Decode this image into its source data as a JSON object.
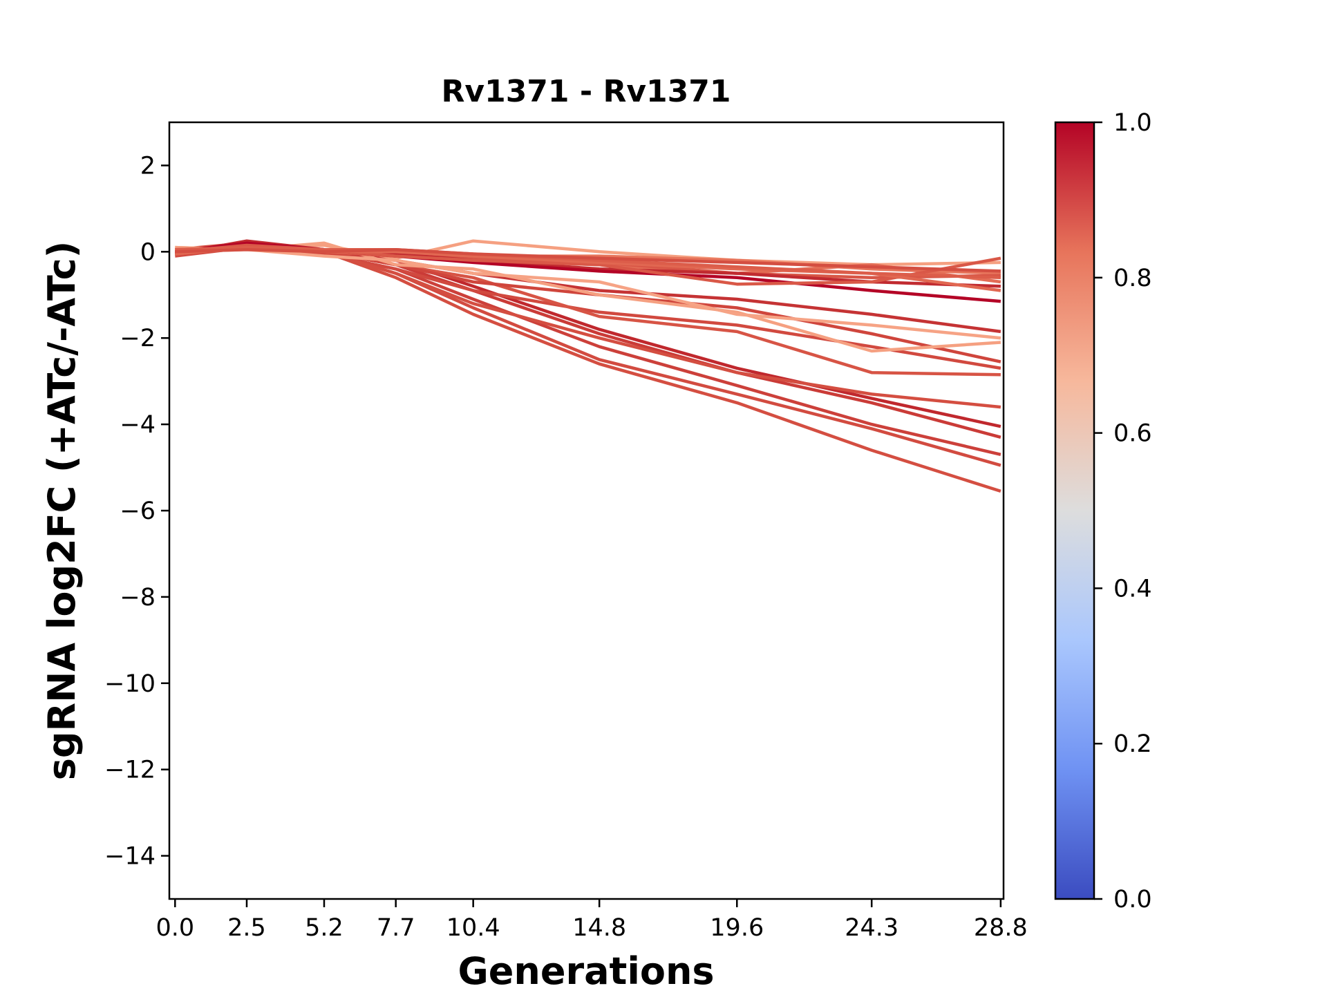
{
  "chart_data": {
    "type": "line",
    "title": "Rv1371 - Rv1371",
    "xlabel": "Generations",
    "ylabel": "sgRNA log2FC (+ATc/-ATc)",
    "x": [
      0.0,
      2.5,
      5.2,
      7.7,
      10.4,
      14.8,
      19.6,
      24.3,
      28.8
    ],
    "x_tick_labels": [
      "0.0",
      "2.5",
      "5.2",
      "7.7",
      "10.4",
      "14.8",
      "19.6",
      "24.3",
      "28.8"
    ],
    "y_ticks": [
      2,
      0,
      -2,
      -4,
      -6,
      -8,
      -10,
      -12,
      -14
    ],
    "y_tick_labels": [
      "2",
      "0",
      "−2",
      "−4",
      "−6",
      "−8",
      "−10",
      "−12",
      "−14"
    ],
    "xlim": [
      -0.2,
      28.9
    ],
    "ylim": [
      -15,
      3
    ],
    "grid": false,
    "colormap": "coolwarm",
    "colorbar": {
      "range": [
        0.0,
        1.0
      ],
      "ticks": [
        0.0,
        0.2,
        0.4,
        0.6,
        0.8,
        1.0
      ],
      "tick_labels": [
        "0.0",
        "0.2",
        "0.4",
        "0.6",
        "0.8",
        "1.0"
      ],
      "stops": [
        "#3b4cc0",
        "#6f92f3",
        "#aac7fd",
        "#dddddd",
        "#f7b89c",
        "#e7745b",
        "#b40426"
      ]
    },
    "series": [
      {
        "color": "#c0282d",
        "values": [
          0.0,
          0.1,
          0.0,
          -0.2,
          -0.8,
          -1.8,
          -2.7,
          -3.4,
          -4.05
        ]
      },
      {
        "color": "#ca3b37",
        "values": [
          -0.05,
          0.2,
          0.0,
          -0.3,
          -0.9,
          -1.9,
          -2.8,
          -3.5,
          -4.3
        ]
      },
      {
        "color": "#cc403a",
        "values": [
          0.0,
          0.15,
          -0.05,
          -0.4,
          -1.1,
          -2.2,
          -3.1,
          -4.0,
          -4.7
        ]
      },
      {
        "color": "#d24b40",
        "values": [
          -0.1,
          0.1,
          0.0,
          -0.5,
          -1.3,
          -2.5,
          -3.3,
          -4.1,
          -4.95
        ]
      },
      {
        "color": "#d44e41",
        "values": [
          0.05,
          0.2,
          0.0,
          -0.6,
          -1.45,
          -2.6,
          -3.5,
          -4.6,
          -5.55
        ]
      },
      {
        "color": "#d1493f",
        "values": [
          0.0,
          0.1,
          -0.05,
          -0.4,
          -0.9,
          -1.4,
          -1.7,
          -2.2,
          -2.7
        ]
      },
      {
        "color": "#d44e41",
        "values": [
          0.0,
          0.15,
          0.0,
          -0.5,
          -1.2,
          -2.0,
          -2.8,
          -3.3,
          -3.6
        ]
      },
      {
        "color": "#d75445",
        "values": [
          -0.05,
          0.1,
          0.0,
          -0.3,
          -0.6,
          -1.5,
          -1.85,
          -2.8,
          -2.85
        ]
      },
      {
        "color": "#cf453c",
        "values": [
          0.0,
          0.1,
          0.0,
          -0.3,
          -0.7,
          -1.0,
          -1.3,
          -1.9,
          -2.55
        ]
      },
      {
        "color": "#c53334",
        "values": [
          0.0,
          0.2,
          0.05,
          -0.2,
          -0.5,
          -0.9,
          -1.1,
          -1.45,
          -1.85
        ]
      },
      {
        "color": "#f5a081",
        "values": [
          0.1,
          0.05,
          0.2,
          -0.3,
          -0.4,
          -1.0,
          -1.4,
          -2.3,
          -2.1
        ]
      },
      {
        "color": "#f6a385",
        "values": [
          0.0,
          0.05,
          -0.1,
          -0.2,
          -0.5,
          -0.7,
          -1.45,
          -1.7,
          -2.0
        ]
      },
      {
        "color": "#f5a081",
        "values": [
          0.1,
          0.05,
          0.15,
          -0.15,
          0.25,
          0.0,
          -0.2,
          -0.3,
          -0.25
        ]
      },
      {
        "color": "#e7745b",
        "values": [
          0.0,
          0.1,
          0.05,
          -0.05,
          -0.1,
          -0.1,
          -0.2,
          -0.4,
          -0.5
        ]
      },
      {
        "color": "#e36c55",
        "values": [
          0.05,
          0.1,
          0.0,
          -0.1,
          -0.2,
          -0.3,
          -0.5,
          -0.3,
          -0.7
        ]
      },
      {
        "color": "#d85646",
        "values": [
          0.0,
          0.15,
          0.0,
          -0.1,
          -0.15,
          -0.25,
          -0.5,
          -0.6,
          -0.55
        ]
      },
      {
        "color": "#c12b30",
        "values": [
          -0.05,
          0.25,
          0.05,
          -0.05,
          -0.2,
          -0.4,
          -0.5,
          -0.7,
          -0.8
        ]
      },
      {
        "color": "#b40426",
        "values": [
          0.0,
          0.2,
          0.05,
          -0.1,
          -0.25,
          -0.45,
          -0.6,
          -0.9,
          -1.15
        ]
      },
      {
        "color": "#d95847",
        "values": [
          0.0,
          0.15,
          0.05,
          -0.1,
          -0.2,
          -0.3,
          -0.75,
          -0.7,
          -0.15
        ]
      },
      {
        "color": "#e16751",
        "values": [
          -0.05,
          0.1,
          0.0,
          0.0,
          -0.1,
          -0.25,
          -0.4,
          -0.5,
          -0.9
        ]
      },
      {
        "color": "#dc5d4a",
        "values": [
          0.05,
          0.1,
          0.05,
          0.05,
          -0.05,
          -0.2,
          -0.35,
          -0.5,
          -0.6
        ]
      },
      {
        "color": "#d44e41",
        "values": [
          0.0,
          0.05,
          0.0,
          0.05,
          -0.05,
          -0.15,
          -0.25,
          -0.35,
          -0.45
        ]
      }
    ]
  }
}
